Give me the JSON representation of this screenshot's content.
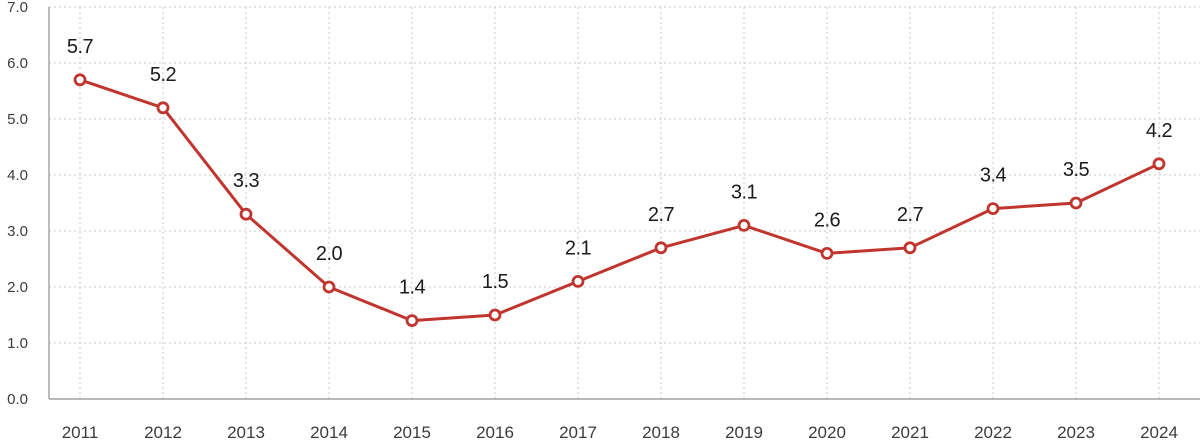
{
  "chart_data": {
    "type": "line",
    "categories": [
      "2011",
      "2012",
      "2013",
      "2014",
      "2015",
      "2016",
      "2017",
      "2018",
      "2019",
      "2020",
      "2021",
      "2022",
      "2023",
      "2024"
    ],
    "values": [
      5.7,
      5.2,
      3.3,
      2.0,
      1.4,
      1.5,
      2.1,
      2.7,
      3.1,
      2.6,
      2.7,
      3.4,
      3.5,
      4.2
    ],
    "value_labels": [
      "5.7",
      "5.2",
      "3.3",
      "2.0",
      "1.4",
      "1.5",
      "2.1",
      "2.7",
      "3.1",
      "2.6",
      "2.7",
      "3.4",
      "3.5",
      "4.2"
    ],
    "title": "",
    "xlabel": "",
    "ylabel": "",
    "ylim": [
      0,
      7
    ],
    "ytick_step": 1,
    "ytick_labels": [
      "0.0",
      "1.0",
      "2.0",
      "3.0",
      "4.0",
      "5.0",
      "6.0",
      "7.0"
    ],
    "grid": "dotted, horizontal and vertical",
    "legend": "none",
    "marker": "open-circle",
    "colors": {
      "line": "#c1352f",
      "marker_fill": "#ffffff",
      "value_label": "#1b1b1b",
      "tick_label": "#3c3c3c",
      "axis": "#8f8f8f",
      "grid": "#c8c8c8",
      "background": "#ffffff"
    }
  }
}
